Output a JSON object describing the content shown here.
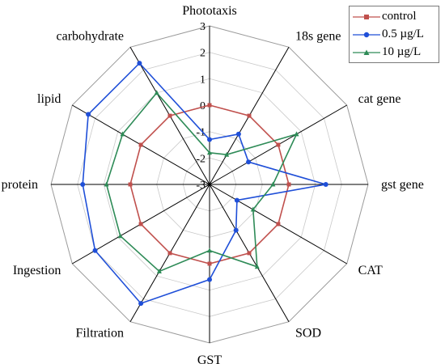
{
  "chart_data": {
    "type": "radar",
    "axes": [
      "Phototaxis",
      "18s gene",
      "cat gene",
      "gst gene",
      "CAT",
      "SOD",
      "GST",
      "Filtration",
      "Ingestion",
      "protein",
      "lipid",
      "carbohydrate"
    ],
    "ticks": [
      "3",
      "2",
      "1",
      "0",
      "-1",
      "-2",
      "-3"
    ],
    "rlim": [
      -3,
      3
    ],
    "grid": true,
    "legend_position": "top-right",
    "series": [
      {
        "name": "control",
        "color": "#c0504d",
        "marker": "square",
        "values": [
          0,
          0,
          0,
          0,
          0,
          0,
          0,
          0,
          0,
          0,
          0,
          0
        ]
      },
      {
        "name": "0.5 µg/L",
        "color": "#1f4fd8",
        "marker": "circle",
        "values": [
          -1.3,
          -0.8,
          -1.3,
          1.4,
          -1.8,
          -1.0,
          0.6,
          2.2,
          2.0,
          1.8,
          2.3,
          2.3
        ]
      },
      {
        "name": "10 µg/L",
        "color": "#2e8b57",
        "marker": "triangle",
        "values": [
          -1.8,
          -1.7,
          0.8,
          -0.6,
          -1.1,
          0.6,
          -0.5,
          0.8,
          0.9,
          0.9,
          0.8,
          1.0
        ]
      }
    ]
  }
}
